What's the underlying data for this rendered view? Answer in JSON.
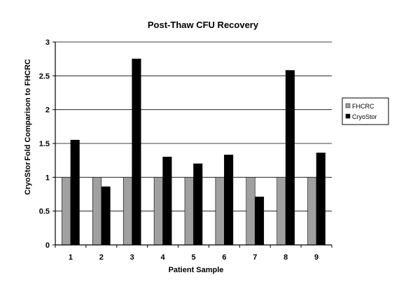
{
  "chart_data": {
    "type": "bar",
    "title": "Post-Thaw CFU Recovery",
    "xlabel": "Patient Sample",
    "ylabel_lines": [
      "CryoStor",
      "Fold Comparison to FHCRC"
    ],
    "categories": [
      "1",
      "2",
      "3",
      "4",
      "5",
      "6",
      "7",
      "8",
      "9"
    ],
    "series": [
      {
        "name": "FHCRC",
        "color": "#a0a0a0",
        "values": [
          1,
          1,
          1,
          1,
          1,
          1,
          1,
          1,
          1
        ]
      },
      {
        "name": "CryoStor",
        "color": "#000000",
        "values": [
          1.55,
          0.86,
          2.75,
          1.3,
          1.2,
          1.33,
          0.71,
          2.58,
          1.36
        ]
      }
    ],
    "ylim": [
      0,
      3
    ],
    "yticks": [
      "0",
      "0.5",
      "1",
      "1.5",
      "2",
      "2.5",
      "3"
    ],
    "grid": "horizontal",
    "legend_position": "right"
  }
}
